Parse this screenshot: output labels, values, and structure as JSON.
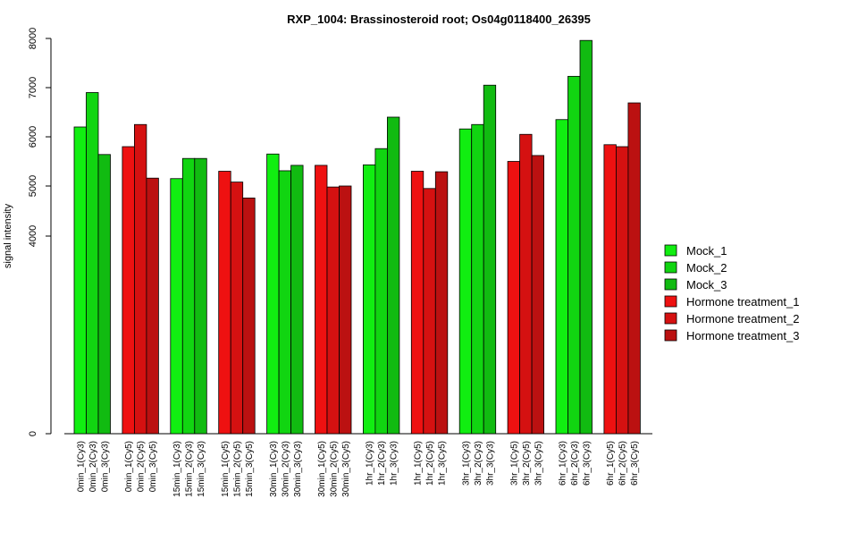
{
  "chart_data": {
    "type": "bar",
    "title": "RXP_1004: Brassinosteroid root; Os04g0118400_26395",
    "ylabel": "signal intensity",
    "xlabel": "",
    "y_ticks": [
      0,
      4000,
      5000,
      6000,
      7000,
      8000
    ],
    "categories": [
      "0min_1(Cy3)",
      "0min_2(Cy3)",
      "0min_3(Cy3)",
      "0min_1(Cy5)",
      "0min_2(Cy5)",
      "0min_3(Cy5)",
      "15min_1(Cy3)",
      "15min_2(Cy3)",
      "15min_3(Cy3)",
      "15min_1(Cy5)",
      "15min_2(Cy5)",
      "15min_3(Cy5)",
      "30min_1(Cy3)",
      "30min_2(Cy3)",
      "30min_3(Cy3)",
      "30min_1(Cy5)",
      "30min_2(Cy5)",
      "30min_3(Cy5)",
      "1hr_1(Cy3)",
      "1hr_2(Cy3)",
      "1hr_3(Cy3)",
      "1hr_1(Cy5)",
      "1hr_2(Cy5)",
      "1hr_3(Cy5)",
      "3hr_1(Cy3)",
      "3hr_2(Cy3)",
      "3hr_3(Cy3)",
      "3hr_1(Cy5)",
      "3hr_2(Cy5)",
      "3hr_3(Cy5)",
      "6hr_1(Cy3)",
      "6hr_2(Cy3)",
      "6hr_3(Cy3)",
      "6hr_1(Cy5)",
      "6hr_2(Cy5)",
      "6hr_3(Cy5)"
    ],
    "values": [
      6200,
      6900,
      5640,
      5800,
      6250,
      5160,
      5150,
      5560,
      5560,
      5300,
      5080,
      4760,
      5650,
      5310,
      5420,
      5420,
      4980,
      5000,
      5430,
      5760,
      6400,
      5300,
      4950,
      5290,
      6160,
      6250,
      7050,
      5500,
      6050,
      5620,
      6350,
      7230,
      7960,
      5840,
      5800,
      6690
    ],
    "bar_series_index": [
      0,
      1,
      2,
      3,
      4,
      5,
      0,
      1,
      2,
      3,
      4,
      5,
      0,
      1,
      2,
      3,
      4,
      5,
      0,
      1,
      2,
      3,
      4,
      5,
      0,
      1,
      2,
      3,
      4,
      5,
      0,
      1,
      2,
      3,
      4,
      5
    ],
    "series": [
      {
        "name": "Mock_1",
        "color": "#11ee11"
      },
      {
        "name": "Mock_2",
        "color": "#11d511"
      },
      {
        "name": "Mock_3",
        "color": "#11bb11"
      },
      {
        "name": "Hormone treatment_1",
        "color": "#ee1111"
      },
      {
        "name": "Hormone treatment_2",
        "color": "#d51111"
      },
      {
        "name": "Hormone treatment_3",
        "color": "#bb1111"
      }
    ],
    "legend_position": "right",
    "grid": false
  }
}
